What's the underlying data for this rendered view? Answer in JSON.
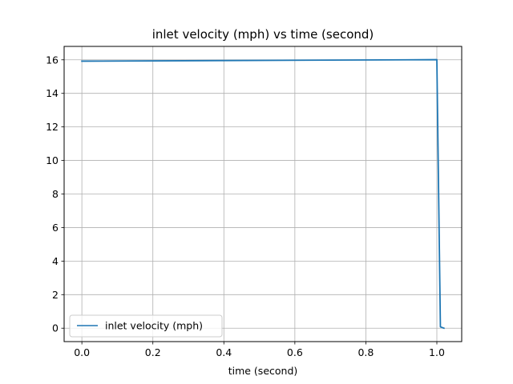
{
  "chart_data": {
    "type": "line",
    "title": "inlet velocity (mph) vs time (second)",
    "xlabel": "time (second)",
    "ylabel": "",
    "xlim": [
      -0.05,
      1.07
    ],
    "ylim": [
      -0.8,
      16.8
    ],
    "xticks": [
      0.0,
      0.2,
      0.4,
      0.6,
      0.8,
      1.0
    ],
    "xtick_labels": [
      "0.0",
      "0.2",
      "0.4",
      "0.6",
      "0.8",
      "1.0"
    ],
    "yticks": [
      0,
      2,
      4,
      6,
      8,
      10,
      12,
      14,
      16
    ],
    "ytick_labels": [
      "0",
      "2",
      "4",
      "6",
      "8",
      "10",
      "12",
      "14",
      "16"
    ],
    "grid": true,
    "legend_position": "lower-left",
    "series": [
      {
        "name": "inlet velocity (mph)",
        "color": "#1f77b4",
        "x": [
          0.0,
          1.0,
          1.01,
          1.02
        ],
        "y": [
          15.92,
          16.01,
          0.08,
          0.0
        ]
      }
    ]
  }
}
